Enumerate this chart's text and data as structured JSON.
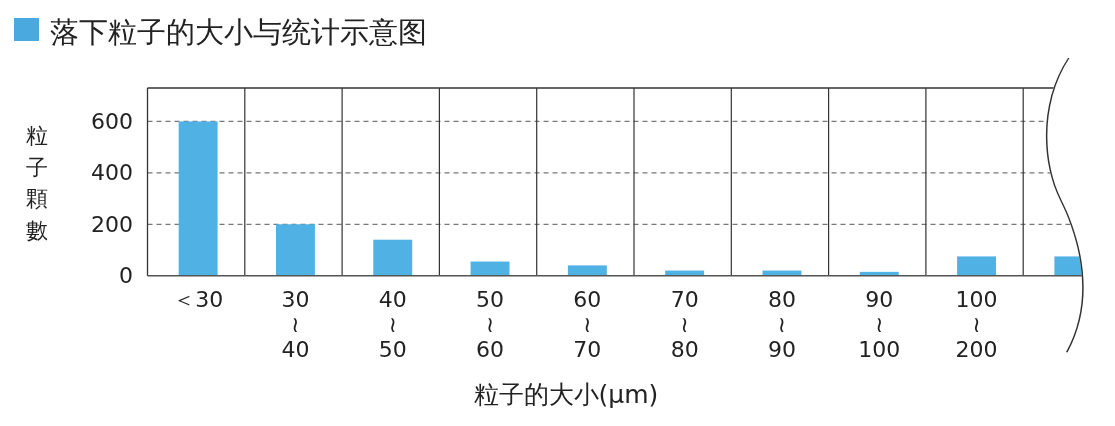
{
  "chart_data": {
    "type": "bar",
    "title": "落下粒子的大小与统计示意图",
    "xlabel": "粒子的大小(μm)",
    "ylabel": "粒子顆數",
    "categories": [
      "＜30",
      "30\n≀\n40",
      "40\n≀\n50",
      "50\n≀\n60",
      "60\n≀\n70",
      "70\n≀\n80",
      "80\n≀\n90",
      "90\n≀\n100",
      "100\n≀\n200",
      null
    ],
    "values": [
      600,
      200,
      140,
      55,
      40,
      20,
      20,
      15,
      75,
      75
    ],
    "color": "#50b1e4",
    "ylim": [
      0,
      730
    ],
    "yticks": [
      0,
      200,
      400,
      600
    ],
    "grid": true
  }
}
